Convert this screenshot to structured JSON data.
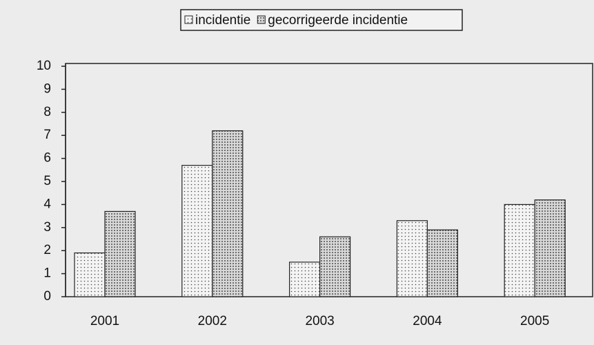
{
  "chart_data": {
    "type": "bar",
    "categories": [
      "2001",
      "2002",
      "2003",
      "2004",
      "2005"
    ],
    "series": [
      {
        "name": "incidentie",
        "color": "#f4f4f4",
        "values": [
          1.9,
          5.7,
          1.5,
          3.3,
          4.0
        ]
      },
      {
        "name": "gecorrigeerde incidentie",
        "color": "#d8d8d8",
        "values": [
          3.7,
          7.2,
          2.6,
          2.9,
          4.2
        ]
      }
    ],
    "ylim": [
      0,
      10
    ],
    "yticks": [
      0,
      1,
      2,
      3,
      4,
      5,
      6,
      7,
      8,
      9,
      10
    ],
    "grid": false,
    "legend": "top"
  }
}
